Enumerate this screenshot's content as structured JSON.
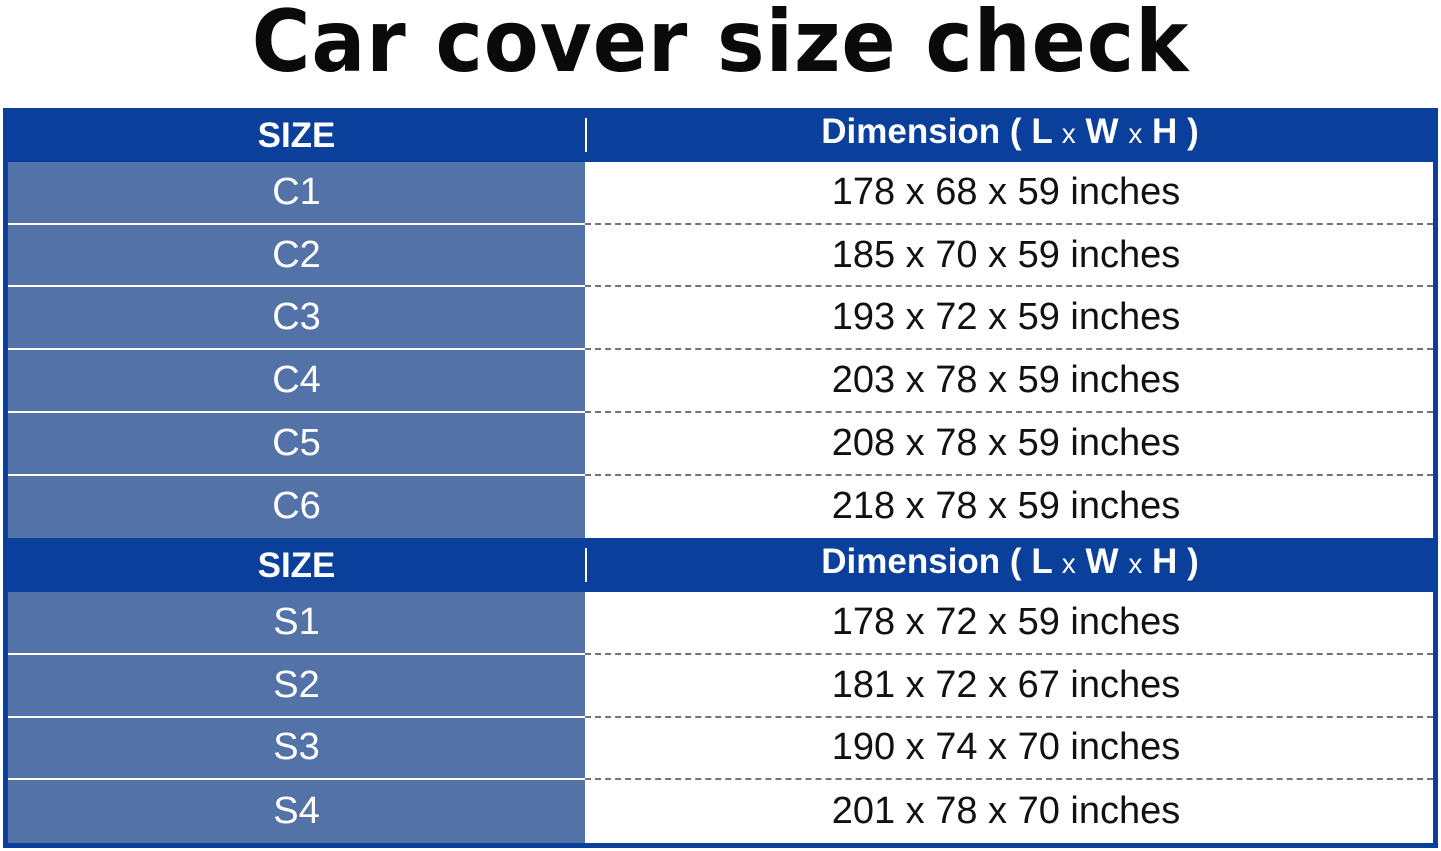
{
  "title": "Car cover size check",
  "header": {
    "size": "SIZE",
    "dimension": "Dimension",
    "open": "(",
    "l": "L",
    "x1": "x",
    "w": "W",
    "x2": "x",
    "h": "H",
    "close": ")"
  },
  "colors": {
    "header": "#0a3f9c",
    "size_cell": "#5373a8"
  },
  "groups": [
    {
      "rows": [
        {
          "size": "C1",
          "dim": "178 x 68 x 59 inches"
        },
        {
          "size": "C2",
          "dim": "185 x 70 x 59 inches"
        },
        {
          "size": "C3",
          "dim": "193 x 72 x 59 inches"
        },
        {
          "size": "C4",
          "dim": "203 x 78 x 59 inches"
        },
        {
          "size": "C5",
          "dim": "208 x 78 x 59 inches"
        },
        {
          "size": "C6",
          "dim": "218 x 78 x 59 inches"
        }
      ]
    },
    {
      "rows": [
        {
          "size": "S1",
          "dim": "178 x 72 x 59 inches"
        },
        {
          "size": "S2",
          "dim": "181 x 72 x 67 inches"
        },
        {
          "size": "S3",
          "dim": "190 x 74 x 70 inches"
        },
        {
          "size": "S4",
          "dim": "201 x 78 x 70 inches"
        }
      ]
    }
  ]
}
